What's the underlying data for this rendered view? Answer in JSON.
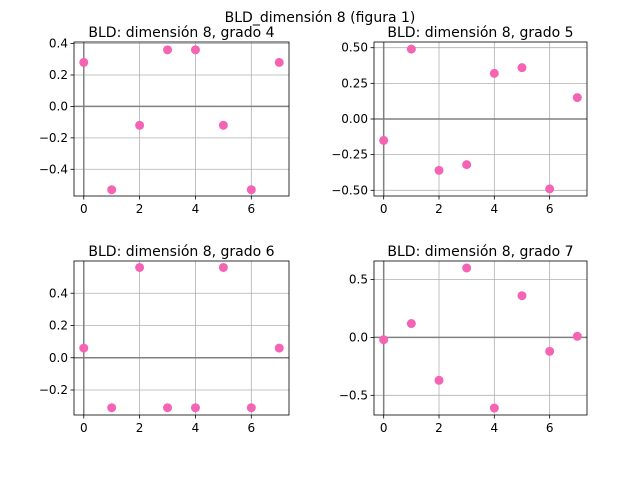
{
  "figure_title": "BLD_dimensión 8 (figura 1)",
  "point_color": "#f564b4",
  "chart_data": [
    {
      "type": "scatter",
      "title": "BLD: dimensión 8, grado 4",
      "x": [
        0,
        1,
        2,
        3,
        4,
        5,
        6,
        7
      ],
      "y": [
        0.28,
        -0.53,
        -0.12,
        0.36,
        0.36,
        -0.12,
        -0.53,
        0.28
      ],
      "xlim": [
        -0.35,
        7.35
      ],
      "ylim": [
        -0.57,
        0.41
      ],
      "xticks": [
        0,
        2,
        4,
        6
      ],
      "xtick_labels": [
        "0",
        "2",
        "4",
        "6"
      ],
      "yticks": [
        -0.4,
        -0.2,
        0.0,
        0.2,
        0.4
      ],
      "ytick_labels": [
        "−0.4",
        "−0.2",
        "0.0",
        "0.2",
        "0.4"
      ],
      "grid": true
    },
    {
      "type": "scatter",
      "title": "BLD: dimensión 8, grado 5",
      "x": [
        0,
        1,
        2,
        3,
        4,
        5,
        6,
        7
      ],
      "y": [
        -0.15,
        0.49,
        -0.36,
        -0.32,
        0.32,
        0.36,
        -0.49,
        0.15
      ],
      "xlim": [
        -0.35,
        7.35
      ],
      "ylim": [
        -0.54,
        0.54
      ],
      "xticks": [
        0,
        2,
        4,
        6
      ],
      "xtick_labels": [
        "0",
        "2",
        "4",
        "6"
      ],
      "yticks": [
        -0.5,
        -0.25,
        0.0,
        0.25,
        0.5
      ],
      "ytick_labels": [
        "−0.50",
        "−0.25",
        "0.00",
        "0.25",
        "0.50"
      ],
      "grid": true
    },
    {
      "type": "scatter",
      "title": "BLD: dimensión 8, grado 6",
      "x": [
        0,
        1,
        2,
        3,
        4,
        5,
        6,
        7
      ],
      "y": [
        0.06,
        -0.31,
        0.56,
        -0.31,
        -0.31,
        0.56,
        -0.31,
        0.06
      ],
      "xlim": [
        -0.35,
        7.35
      ],
      "ylim": [
        -0.355,
        0.6
      ],
      "xticks": [
        0,
        2,
        4,
        6
      ],
      "xtick_labels": [
        "0",
        "2",
        "4",
        "6"
      ],
      "yticks": [
        -0.2,
        0.0,
        0.2,
        0.4
      ],
      "ytick_labels": [
        "−0.2",
        "0.0",
        "0.2",
        "0.4"
      ],
      "grid": true
    },
    {
      "type": "scatter",
      "title": "BLD: dimensión 8, grado 7",
      "x": [
        0,
        1,
        2,
        3,
        4,
        5,
        6,
        7
      ],
      "y": [
        -0.02,
        0.12,
        -0.37,
        0.6,
        -0.61,
        0.36,
        -0.12,
        0.01
      ],
      "xlim": [
        -0.35,
        7.35
      ],
      "ylim": [
        -0.67,
        0.66
      ],
      "xticks": [
        0,
        2,
        4,
        6
      ],
      "xtick_labels": [
        "0",
        "2",
        "4",
        "6"
      ],
      "yticks": [
        -0.5,
        0.0,
        0.5
      ],
      "ytick_labels": [
        "−0.5",
        "0.0",
        "0.5"
      ],
      "grid": true
    }
  ]
}
